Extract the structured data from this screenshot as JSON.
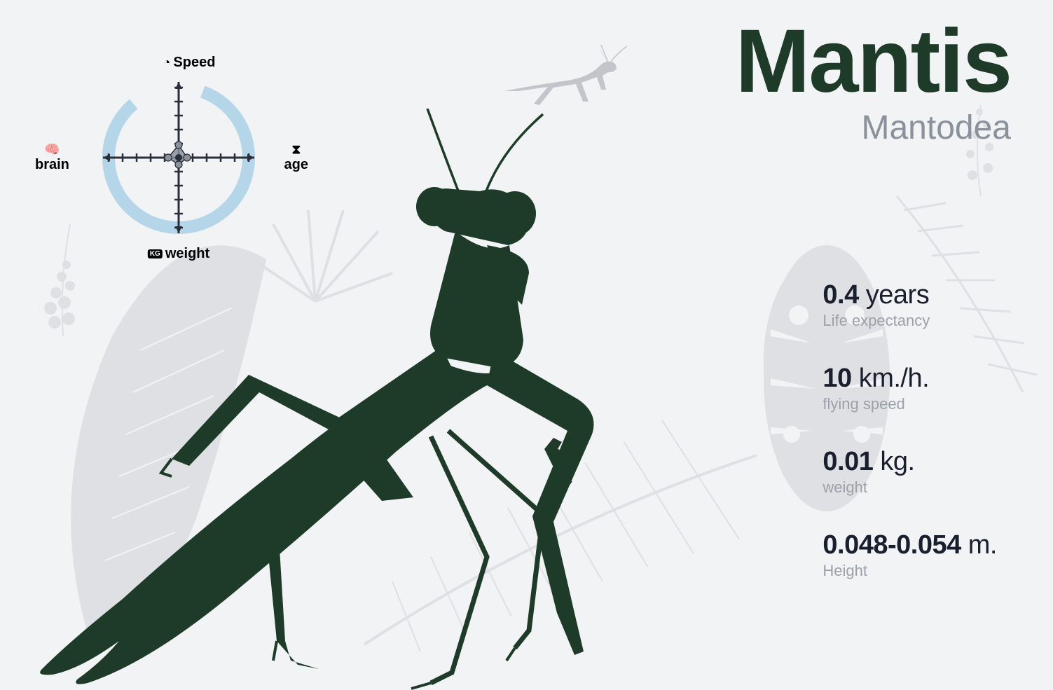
{
  "colors": {
    "bg": "#f1f3f5",
    "mantis": "#1e3a28",
    "title": "#1e3a28",
    "subtitle": "#8a919b",
    "stat_value": "#1a1f2e",
    "stat_label": "#9ba0aa",
    "radar_ring": "#b4d6e8",
    "radar_axis": "#2a2f3a",
    "radar_fill": "#8a919b",
    "leaf": "#5a5f68"
  },
  "title": {
    "main": "Mantis",
    "sub": "Mantodea",
    "main_fontsize": 128,
    "sub_fontsize": 48
  },
  "radar": {
    "labels": {
      "top": "Speed",
      "right": "age",
      "bottom": "weight",
      "left": "brain"
    },
    "values": {
      "speed": 0.18,
      "age": 0.12,
      "weight": 0.1,
      "brain": 0.15
    },
    "ticks": 5,
    "ring_start_deg": 20,
    "ring_sweep_deg": 300,
    "ring_width": 18
  },
  "stats": [
    {
      "value": "0.4",
      "unit": "years",
      "label": "Life expectancy"
    },
    {
      "value": "10",
      "unit": "km./h.",
      "label": "flying speed"
    },
    {
      "value": "0.01",
      "unit": "kg.",
      "label": "weight"
    },
    {
      "value": "0.048-0.054",
      "unit": "m.",
      "label": "Height"
    }
  ]
}
